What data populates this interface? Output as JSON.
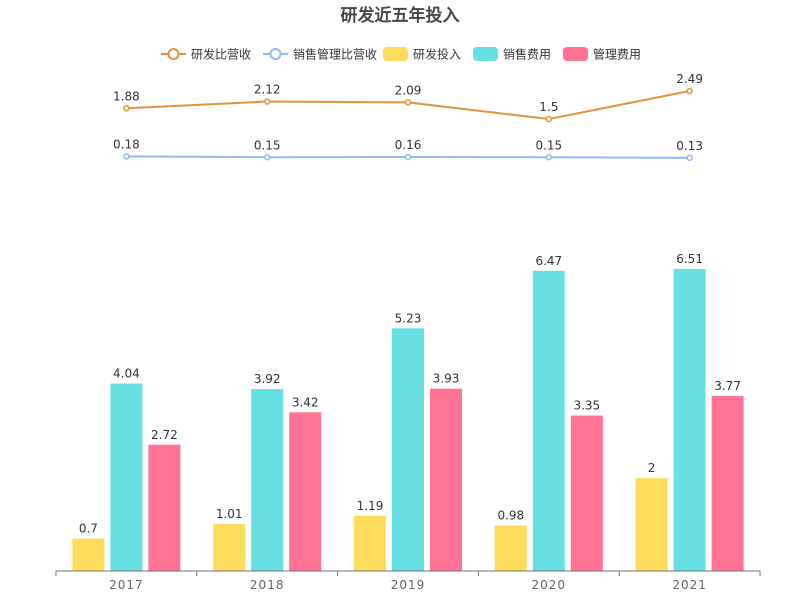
{
  "chart_data": {
    "type": "bar",
    "title": "研发近五年投入",
    "categories": [
      "2017",
      "2018",
      "2019",
      "2020",
      "2021"
    ],
    "legend_position": "top",
    "bar_series": [
      {
        "name": "研发投入",
        "color": "#ffdb5c",
        "values": [
          0.7,
          1.01,
          1.19,
          0.98,
          2
        ]
      },
      {
        "name": "销售费用",
        "color": "#67e0e3",
        "values": [
          4.04,
          3.92,
          5.23,
          6.47,
          6.51
        ]
      },
      {
        "name": "管理费用",
        "color": "#ff7294",
        "values": [
          2.72,
          3.42,
          3.93,
          3.35,
          3.77
        ]
      }
    ],
    "line_series": [
      {
        "name": "研发比营收",
        "color": "#e3923b",
        "values": [
          1.88,
          2.12,
          2.09,
          1.5,
          2.49
        ]
      },
      {
        "name": "销售管理比营收",
        "color": "#91b9f5",
        "values": [
          0.18,
          0.15,
          0.16,
          0.15,
          0.13
        ]
      }
    ],
    "grid": false
  }
}
